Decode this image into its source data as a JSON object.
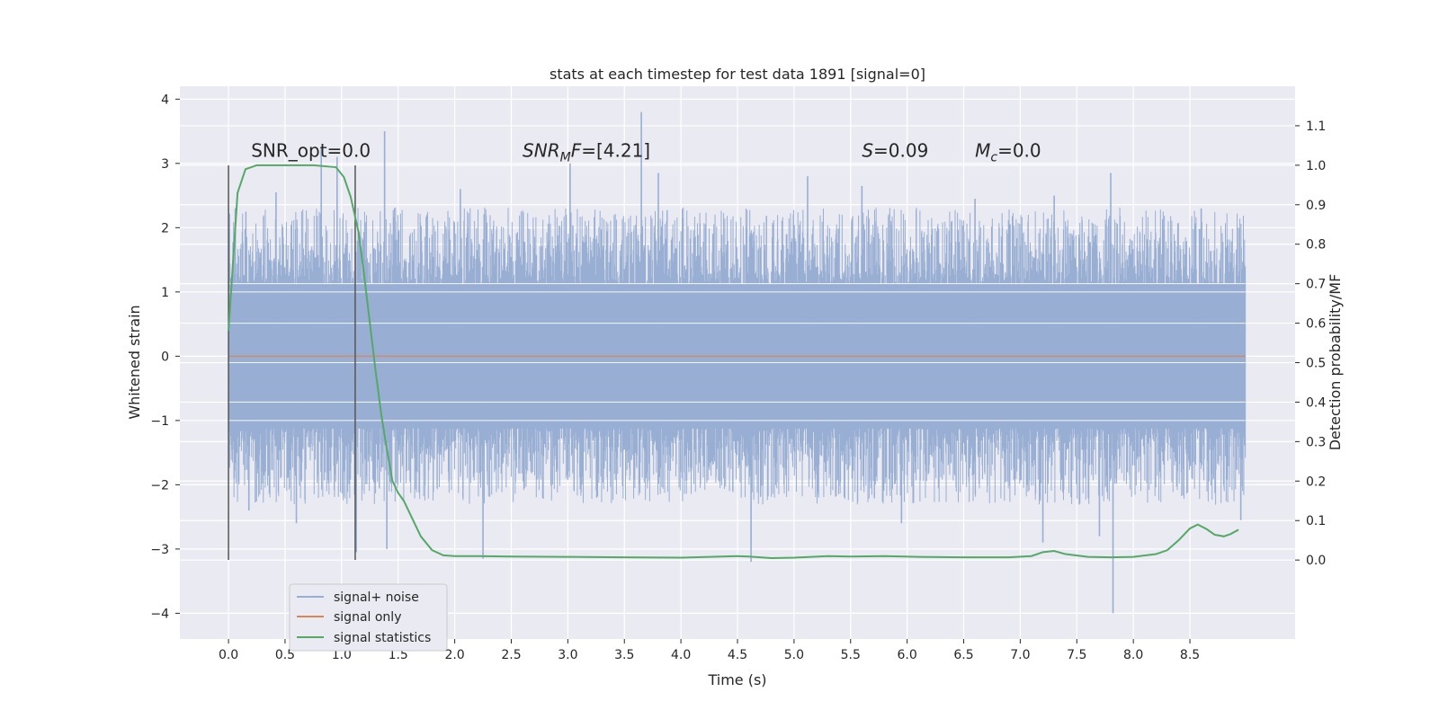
{
  "chart_data": {
    "type": "line",
    "title": "stats at each timestep for test data 1891 [signal=0]",
    "xlabel": "Time (s)",
    "ylabel": "Whitened strain",
    "ylabel_right": "Detection probability/MF",
    "xlim": [
      -0.43,
      9.43
    ],
    "ylim": [
      -4.4,
      4.2
    ],
    "ylim_right": [
      -0.2,
      1.2
    ],
    "x_ticks": [
      0.0,
      0.5,
      1.0,
      1.5,
      2.0,
      2.5,
      3.0,
      3.5,
      4.0,
      4.5,
      5.0,
      5.5,
      6.0,
      6.5,
      7.0,
      7.5,
      8.0,
      8.5
    ],
    "y_ticks": [
      -4,
      -3,
      -2,
      -1,
      0,
      1,
      2,
      3,
      4
    ],
    "y_ticks_right": [
      0.0,
      0.1,
      0.2,
      0.3,
      0.4,
      0.5,
      0.6,
      0.7,
      0.8,
      0.9,
      1.0,
      1.1
    ],
    "x_tick_labels": [
      "0.0",
      "0.5",
      "1.0",
      "1.5",
      "2.0",
      "2.5",
      "3.0",
      "3.5",
      "4.0",
      "4.5",
      "5.0",
      "5.5",
      "6.0",
      "6.5",
      "7.0",
      "7.5",
      "8.0",
      "8.5"
    ],
    "y_tick_labels": [
      "−4",
      "−3",
      "−2",
      "−1",
      "0",
      "1",
      "2",
      "3",
      "4"
    ],
    "y_tick_labels_right": [
      "0.0",
      "0.1",
      "0.2",
      "0.3",
      "0.4",
      "0.5",
      "0.6",
      "0.7",
      "0.8",
      "0.9",
      "1.0",
      "1.1"
    ],
    "grid": true,
    "legend_placement": "lower-left",
    "noise_range": [
      0.0,
      8.99
    ],
    "noise_band": [
      -1.25,
      1.25
    ],
    "noise_spikes": [
      {
        "x": 0.05,
        "y": -1.9
      },
      {
        "x": 0.06,
        "y": 2.3
      },
      {
        "x": 0.18,
        "y": -2.4
      },
      {
        "x": 0.42,
        "y": 2.55
      },
      {
        "x": 0.6,
        "y": -2.6
      },
      {
        "x": 0.82,
        "y": 3.25
      },
      {
        "x": 0.96,
        "y": 3.1
      },
      {
        "x": 1.13,
        "y": -3.05
      },
      {
        "x": 1.38,
        "y": 3.5
      },
      {
        "x": 1.4,
        "y": -3.0
      },
      {
        "x": 2.05,
        "y": 2.6
      },
      {
        "x": 2.25,
        "y": -3.15
      },
      {
        "x": 3.02,
        "y": 3.0
      },
      {
        "x": 3.65,
        "y": 3.8
      },
      {
        "x": 3.8,
        "y": 2.85
      },
      {
        "x": 4.62,
        "y": -3.2
      },
      {
        "x": 5.12,
        "y": 2.8
      },
      {
        "x": 5.6,
        "y": 2.65
      },
      {
        "x": 5.95,
        "y": -2.6
      },
      {
        "x": 6.6,
        "y": 2.45
      },
      {
        "x": 7.2,
        "y": -2.9
      },
      {
        "x": 7.3,
        "y": 2.5
      },
      {
        "x": 7.7,
        "y": -2.8
      },
      {
        "x": 7.8,
        "y": 2.85
      },
      {
        "x": 7.82,
        "y": -4.0
      },
      {
        "x": 8.6,
        "y": 2.3
      },
      {
        "x": 8.95,
        "y": -2.55
      }
    ],
    "signal_only": {
      "x": [
        0.0,
        8.99
      ],
      "y": [
        0.0,
        0.0
      ]
    },
    "statistics": {
      "x": [
        0.0,
        0.08,
        0.15,
        0.25,
        0.5,
        0.75,
        0.95,
        1.02,
        1.08,
        1.15,
        1.2,
        1.25,
        1.3,
        1.35,
        1.4,
        1.45,
        1.5,
        1.55,
        1.6,
        1.7,
        1.8,
        1.9,
        2.0,
        2.2,
        2.5,
        3.0,
        3.5,
        4.0,
        4.5,
        4.6,
        4.8,
        5.0,
        5.3,
        5.5,
        5.8,
        6.1,
        6.5,
        6.9,
        7.1,
        7.2,
        7.3,
        7.4,
        7.6,
        7.8,
        8.0,
        8.2,
        8.3,
        8.4,
        8.5,
        8.57,
        8.65,
        8.72,
        8.8,
        8.86,
        8.93
      ],
      "y": [
        0.58,
        0.93,
        0.99,
        1.0,
        1.0,
        1.0,
        0.995,
        0.97,
        0.92,
        0.83,
        0.72,
        0.6,
        0.48,
        0.37,
        0.28,
        0.2,
        0.17,
        0.15,
        0.12,
        0.06,
        0.025,
        0.012,
        0.01,
        0.01,
        0.009,
        0.008,
        0.007,
        0.006,
        0.01,
        0.009,
        0.005,
        0.006,
        0.01,
        0.009,
        0.01,
        0.008,
        0.007,
        0.007,
        0.01,
        0.02,
        0.023,
        0.015,
        0.008,
        0.007,
        0.008,
        0.015,
        0.025,
        0.05,
        0.08,
        0.09,
        0.078,
        0.064,
        0.06,
        0.066,
        0.077
      ]
    },
    "vlines": [
      {
        "x": 0.0,
        "y": [
          -3.17,
          2.97
        ]
      },
      {
        "x": 1.12,
        "y": [
          -3.17,
          2.97
        ]
      }
    ],
    "annotations": [
      {
        "text": "SNR_opt=0.0",
        "x": 0.2,
        "y": 3.1,
        "style": "plain"
      },
      {
        "text": "F=[4.21]",
        "math": "SNR",
        "sub": "M",
        "x": 2.6,
        "y": 3.1,
        "style": "math"
      },
      {
        "text": "=0.09",
        "math": "S",
        "sub": "",
        "x": 5.6,
        "y": 3.1,
        "style": "math"
      },
      {
        "text": "=0.0",
        "math": "M",
        "sub": "c",
        "x": 6.6,
        "y": 3.1,
        "style": "math"
      }
    ],
    "series": [
      {
        "name": "signal+ noise",
        "color": "#4c72b0"
      },
      {
        "name": "signal only",
        "color": "#dd8452"
      },
      {
        "name": "signal statistics",
        "color": "#55a868"
      }
    ],
    "colors": {
      "plot_bg": "#eaeaf2",
      "grid": "#ffffff",
      "vline": "#555555",
      "noise": "#98aed3",
      "signal": "#dd8452",
      "stats": "#55a868"
    }
  }
}
